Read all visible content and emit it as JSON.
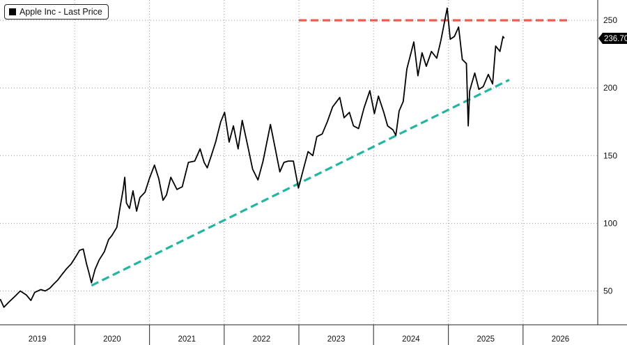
{
  "chart_data": {
    "type": "line",
    "legend": {
      "label": "Apple Inc - Last Price",
      "placement": "top-left",
      "color": "#000000"
    },
    "y_axis": {
      "ticks": [
        50,
        100,
        150,
        200,
        250
      ],
      "range": [
        25,
        265
      ],
      "position": "right"
    },
    "x_axis": {
      "year_labels": [
        "2019",
        "2020",
        "2021",
        "2022",
        "2023",
        "2024",
        "2025",
        "2026"
      ],
      "range": [
        "2019-01-01",
        "2027-01-01"
      ]
    },
    "last_price": {
      "label": "236.70",
      "value": 236.7
    },
    "series": [
      {
        "name": "Apple Inc - Last Price",
        "color": "#000000",
        "points": [
          [
            "2019-01-02",
            44
          ],
          [
            "2019-01-20",
            38
          ],
          [
            "2019-02-15",
            42
          ],
          [
            "2019-03-15",
            46
          ],
          [
            "2019-04-10",
            50
          ],
          [
            "2019-05-10",
            47
          ],
          [
            "2019-06-01",
            43
          ],
          [
            "2019-06-20",
            49
          ],
          [
            "2019-07-20",
            51
          ],
          [
            "2019-08-10",
            50
          ],
          [
            "2019-09-01",
            52
          ],
          [
            "2019-09-20",
            55
          ],
          [
            "2019-10-10",
            58
          ],
          [
            "2019-10-30",
            62
          ],
          [
            "2019-11-20",
            66
          ],
          [
            "2019-12-15",
            70
          ],
          [
            "2020-01-05",
            75
          ],
          [
            "2020-01-25",
            80
          ],
          [
            "2020-02-12",
            81
          ],
          [
            "2020-02-28",
            70
          ],
          [
            "2020-03-10",
            64
          ],
          [
            "2020-03-23",
            56
          ],
          [
            "2020-04-10",
            66
          ],
          [
            "2020-04-30",
            73
          ],
          [
            "2020-05-25",
            79
          ],
          [
            "2020-06-15",
            88
          ],
          [
            "2020-07-01",
            91
          ],
          [
            "2020-07-25",
            97
          ],
          [
            "2020-08-10",
            112
          ],
          [
            "2020-08-25",
            125
          ],
          [
            "2020-09-02",
            134
          ],
          [
            "2020-09-10",
            115
          ],
          [
            "2020-09-25",
            111
          ],
          [
            "2020-10-12",
            124
          ],
          [
            "2020-10-30",
            109
          ],
          [
            "2020-11-15",
            119
          ],
          [
            "2020-12-10",
            123
          ],
          [
            "2020-12-31",
            133
          ],
          [
            "2021-01-25",
            143
          ],
          [
            "2021-02-15",
            133
          ],
          [
            "2021-03-08",
            117
          ],
          [
            "2021-03-25",
            121
          ],
          [
            "2021-04-15",
            134
          ],
          [
            "2021-05-15",
            125
          ],
          [
            "2021-06-10",
            127
          ],
          [
            "2021-07-10",
            145
          ],
          [
            "2021-08-10",
            146
          ],
          [
            "2021-09-05",
            155
          ],
          [
            "2021-09-25",
            145
          ],
          [
            "2021-10-10",
            141
          ],
          [
            "2021-10-30",
            150
          ],
          [
            "2021-11-20",
            160
          ],
          [
            "2021-12-15",
            175
          ],
          [
            "2022-01-03",
            182
          ],
          [
            "2022-01-25",
            160
          ],
          [
            "2022-02-15",
            172
          ],
          [
            "2022-03-10",
            155
          ],
          [
            "2022-03-30",
            176
          ],
          [
            "2022-04-25",
            158
          ],
          [
            "2022-05-20",
            140
          ],
          [
            "2022-06-15",
            132
          ],
          [
            "2022-07-10",
            146
          ],
          [
            "2022-08-15",
            173
          ],
          [
            "2022-09-05",
            157
          ],
          [
            "2022-09-30",
            138
          ],
          [
            "2022-10-20",
            145
          ],
          [
            "2022-11-10",
            146
          ],
          [
            "2022-12-05",
            146
          ],
          [
            "2022-12-30",
            126
          ],
          [
            "2023-01-25",
            141
          ],
          [
            "2023-02-15",
            153
          ],
          [
            "2023-03-10",
            150
          ],
          [
            "2023-03-30",
            164
          ],
          [
            "2023-04-25",
            166
          ],
          [
            "2023-05-20",
            175
          ],
          [
            "2023-06-15",
            186
          ],
          [
            "2023-07-20",
            193
          ],
          [
            "2023-08-10",
            178
          ],
          [
            "2023-09-05",
            182
          ],
          [
            "2023-09-25",
            172
          ],
          [
            "2023-10-20",
            170
          ],
          [
            "2023-11-15",
            185
          ],
          [
            "2023-12-14",
            198
          ],
          [
            "2024-01-05",
            181
          ],
          [
            "2024-01-25",
            194
          ],
          [
            "2024-02-20",
            182
          ],
          [
            "2024-03-10",
            172
          ],
          [
            "2024-04-05",
            169
          ],
          [
            "2024-04-19",
            165
          ],
          [
            "2024-05-05",
            183
          ],
          [
            "2024-05-25",
            190
          ],
          [
            "2024-06-12",
            214
          ],
          [
            "2024-07-16",
            234
          ],
          [
            "2024-08-05",
            209
          ],
          [
            "2024-08-25",
            226
          ],
          [
            "2024-09-15",
            216
          ],
          [
            "2024-10-10",
            227
          ],
          [
            "2024-11-05",
            222
          ],
          [
            "2024-11-25",
            235
          ],
          [
            "2024-12-26",
            259
          ],
          [
            "2025-01-10",
            236
          ],
          [
            "2025-01-30",
            238
          ],
          [
            "2025-02-20",
            245
          ],
          [
            "2025-03-10",
            221
          ],
          [
            "2025-03-30",
            218
          ],
          [
            "2025-04-08",
            172
          ],
          [
            "2025-04-15",
            198
          ],
          [
            "2025-05-10",
            211
          ],
          [
            "2025-05-30",
            199
          ],
          [
            "2025-06-20",
            201
          ],
          [
            "2025-07-15",
            210
          ],
          [
            "2025-08-05",
            203
          ],
          [
            "2025-08-20",
            231
          ],
          [
            "2025-09-10",
            227
          ],
          [
            "2025-09-25",
            238
          ],
          [
            "2025-10-01",
            236.7
          ]
        ]
      },
      {
        "name": "",
        "style": "dashed",
        "color": "#20b7a0",
        "points": [
          [
            "2020-03-23",
            54
          ],
          [
            "2025-10-25",
            206
          ]
        ]
      },
      {
        "name": "",
        "style": "dashed",
        "color": "#f05a4f",
        "points": [
          [
            "2023-01-01",
            250
          ],
          [
            "2026-08-20",
            250
          ]
        ]
      }
    ]
  }
}
